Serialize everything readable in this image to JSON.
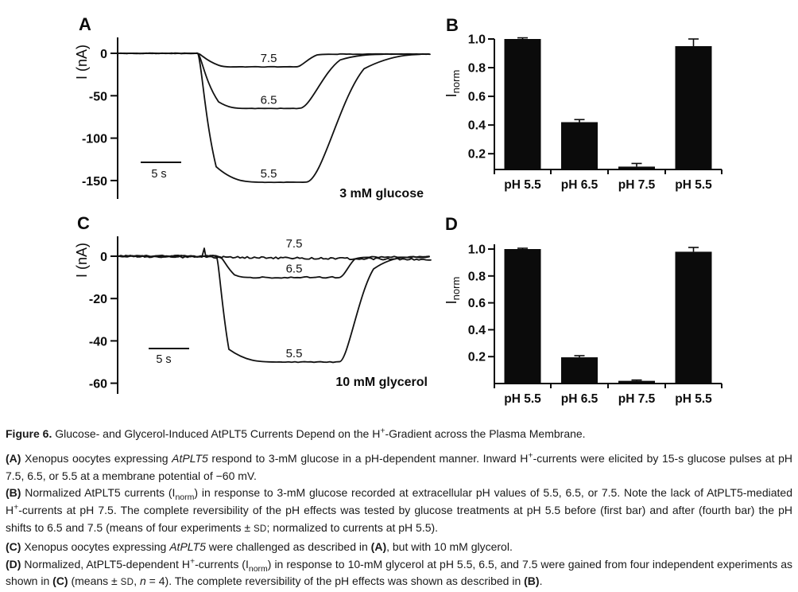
{
  "page": {
    "background": "#ffffff",
    "ink": "#0b0b0b"
  },
  "chart_data": [
    {
      "panel": "A",
      "type": "line",
      "title": "3 mM glucose",
      "ylabel": "I (nA)",
      "yticks": [
        0,
        -50,
        -100,
        -150
      ],
      "ylim": [
        -165,
        10
      ],
      "x_scalebar": {
        "label": "5 s",
        "seconds": 5
      },
      "pulse_duration_s": 15,
      "traces": [
        {
          "label": "7.5",
          "plateau_nA": -16
        },
        {
          "label": "6.5",
          "plateau_nA": -65
        },
        {
          "label": "5.5",
          "plateau_nA": -152
        }
      ]
    },
    {
      "panel": "B",
      "type": "bar",
      "ylabel_base": "I",
      "ylabel_sub": "norm",
      "yticks": [
        1.0,
        0.8,
        0.6,
        0.4,
        0.2
      ],
      "ylim": [
        0.09,
        1.0
      ],
      "categories": [
        "pH 5.5",
        "pH 6.5",
        "pH 7.5",
        "pH 5.5"
      ],
      "values": [
        1.0,
        0.42,
        0.11,
        0.95
      ],
      "errors": [
        0.008,
        0.018,
        0.022,
        0.05
      ],
      "legend": "none",
      "grid": false
    },
    {
      "panel": "C",
      "type": "line",
      "title": "10 mM glycerol",
      "ylabel": "I (nA)",
      "yticks": [
        0,
        -20,
        -40,
        -60
      ],
      "ylim": [
        -62,
        6
      ],
      "x_scalebar": {
        "label": "5 s",
        "seconds": 5
      },
      "pulse_duration_s": 15,
      "traces": [
        {
          "label": "7.5",
          "plateau_nA": -2
        },
        {
          "label": "6.5",
          "plateau_nA": -10
        },
        {
          "label": "5.5",
          "plateau_nA": -50
        }
      ]
    },
    {
      "panel": "D",
      "type": "bar",
      "ylabel_base": "I",
      "ylabel_sub": "norm",
      "yticks": [
        1.0,
        0.8,
        0.6,
        0.4,
        0.2
      ],
      "ylim": [
        0,
        1.0
      ],
      "categories": [
        "pH 5.5",
        "pH 6.5",
        "pH 7.5",
        "pH 5.5"
      ],
      "values": [
        1.0,
        0.195,
        0.02,
        0.98
      ],
      "errors": [
        0.006,
        0.012,
        0.006,
        0.032
      ],
      "legend": "none",
      "grid": false
    }
  ],
  "caption": {
    "heading": [
      {
        "t": "Figure 6.",
        "b": true
      },
      {
        "t": "  Glucose- and Glycerol-Induced AtPLT5 Currents Depend on the H"
      },
      {
        "t": "+",
        "sup": true
      },
      {
        "t": "-Gradient across the Plasma Membrane."
      }
    ],
    "paragraphs": [
      [
        {
          "t": "(A)",
          "b": true
        },
        {
          "t": " Xenopus oocytes expressing "
        },
        {
          "t": "AtPLT5",
          "i": true
        },
        {
          "t": " respond to 3-mM glucose in a pH-dependent manner. Inward H"
        },
        {
          "t": "+",
          "sup": true
        },
        {
          "t": "-currents were elicited by 15-s glucose pulses at pH 7.5, 6.5, or 5.5 at a membrane potential of −60 mV."
        }
      ],
      [
        {
          "t": "(B)",
          "b": true
        },
        {
          "t": " Normalized AtPLT5 currents (I"
        },
        {
          "t": "norm",
          "sub": true
        },
        {
          "t": ") in response to 3-mM glucose recorded at extracellular pH values of 5.5, 6.5, or 7.5. Note the lack of AtPLT5-mediated H"
        },
        {
          "t": "+",
          "sup": true
        },
        {
          "t": "-currents at pH 7.5. The complete reversibility of the pH effects was tested by glucose treatments at pH 5.5 before (first bar) and after (fourth bar) the pH shifts to 6.5 and 7.5 (means of four experiments ± "
        },
        {
          "t": "SD",
          "sc": true
        },
        {
          "t": "; normalized to currents at pH 5.5)."
        }
      ],
      [
        {
          "t": "(C)",
          "b": true
        },
        {
          "t": " Xenopus oocytes expressing "
        },
        {
          "t": "AtPLT5",
          "i": true
        },
        {
          "t": " were challenged as described in "
        },
        {
          "t": "(A)",
          "b": true
        },
        {
          "t": ", but with 10 mM glycerol."
        }
      ],
      [
        {
          "t": "(D)",
          "b": true
        },
        {
          "t": " Normalized, AtPLT5-dependent H"
        },
        {
          "t": "+",
          "sup": true
        },
        {
          "t": "-currents (I"
        },
        {
          "t": "norm",
          "sub": true
        },
        {
          "t": ") in response to 10-mM glycerol at pH 5.5, 6.5, and 7.5 were gained from four independent experiments as shown in "
        },
        {
          "t": "(C)",
          "b": true
        },
        {
          "t": " (means ± "
        },
        {
          "t": "SD",
          "sc": true
        },
        {
          "t": ", "
        },
        {
          "t": "n",
          "i": true
        },
        {
          "t": " = 4). The complete reversibility of the pH effects was shown as described in "
        },
        {
          "t": "(B)",
          "b": true
        },
        {
          "t": "."
        }
      ]
    ]
  }
}
